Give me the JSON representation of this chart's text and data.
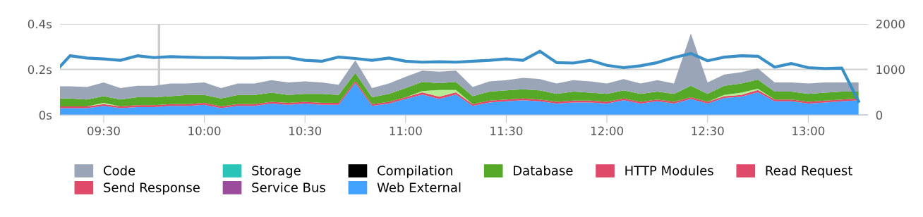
{
  "chart_data": {
    "type": "area",
    "stacked": true,
    "x": [
      9.283,
      9.333,
      9.417,
      9.5,
      9.583,
      9.667,
      9.75,
      9.833,
      9.917,
      10,
      10.083,
      10.167,
      10.25,
      10.333,
      10.417,
      10.5,
      10.583,
      10.667,
      10.75,
      10.833,
      10.917,
      11,
      11.083,
      11.167,
      11.25,
      11.333,
      11.417,
      11.5,
      11.583,
      11.667,
      11.75,
      11.833,
      11.917,
      12,
      12.083,
      12.167,
      12.25,
      12.333,
      12.417,
      12.5,
      12.583,
      12.667,
      12.75,
      12.833,
      12.917,
      13,
      13.083,
      13.167,
      13.25
    ],
    "xlim": [
      9.283,
      13.295
    ],
    "xticks": [
      {
        "value": 9.5,
        "label": "09:30"
      },
      {
        "value": 10,
        "label": "10:00"
      },
      {
        "value": 10.5,
        "label": "10:30"
      },
      {
        "value": 11,
        "label": "11:00"
      },
      {
        "value": 11.5,
        "label": "11:30"
      },
      {
        "value": 12,
        "label": "12:00"
      },
      {
        "value": 12.5,
        "label": "12:30"
      },
      {
        "value": 13,
        "label": "13:00"
      }
    ],
    "ylim": [
      0,
      0.4
    ],
    "yticks": [
      {
        "value": 0,
        "label": "0s"
      },
      {
        "value": 0.2,
        "label": "0.2s"
      },
      {
        "value": 0.4,
        "label": "0.4s"
      }
    ],
    "y2lim": [
      0,
      2000
    ],
    "y2ticks": [
      0,
      1000,
      2000
    ],
    "grid": "y",
    "legend": "bottom",
    "ref_lines": [
      {
        "axis": "x",
        "value": 9.775,
        "color": "#cccccc"
      }
    ],
    "series": [
      {
        "name": "Web External",
        "color": "#43a2ff",
        "values": [
          0.03,
          0.03,
          0.03,
          0.04,
          0.03,
          0.035,
          0.035,
          0.04,
          0.04,
          0.045,
          0.03,
          0.04,
          0.04,
          0.05,
          0.045,
          0.05,
          0.045,
          0.045,
          0.14,
          0.04,
          0.05,
          0.07,
          0.09,
          0.07,
          0.09,
          0.04,
          0.055,
          0.06,
          0.065,
          0.06,
          0.05,
          0.055,
          0.055,
          0.05,
          0.065,
          0.05,
          0.06,
          0.05,
          0.07,
          0.05,
          0.075,
          0.08,
          0.1,
          0.06,
          0.06,
          0.05,
          0.055,
          0.06,
          0.065
        ]
      },
      {
        "name": "Service Bus",
        "color": "#9b4d9b",
        "values": [
          null,
          null,
          null,
          null,
          null,
          null,
          null,
          null,
          null,
          null,
          null,
          null,
          null,
          null,
          null,
          null,
          null,
          null,
          null,
          null,
          null,
          null,
          null,
          null,
          null,
          null,
          null,
          null,
          null,
          null,
          null,
          null,
          null,
          null,
          null,
          null,
          null,
          null,
          null,
          null,
          null,
          null,
          null,
          null,
          null,
          null,
          null,
          null,
          null
        ]
      },
      {
        "name": "Send Response",
        "color": "#e04a6a",
        "values": [
          0.008,
          0.008,
          0.008,
          0.008,
          0.008,
          0.008,
          0.008,
          0.008,
          0.008,
          0.008,
          0.008,
          0.008,
          0.008,
          0.008,
          0.008,
          0.008,
          0.008,
          0.008,
          0.01,
          0.008,
          0.008,
          0.008,
          0.01,
          0.01,
          0.01,
          0.008,
          0.008,
          0.008,
          0.008,
          0.008,
          0.008,
          0.008,
          0.008,
          0.008,
          0.008,
          0.008,
          0.008,
          0.008,
          0.008,
          0.008,
          0.008,
          0.008,
          0.01,
          0.008,
          0.008,
          0.008,
          0.008,
          0.008,
          0.008
        ]
      },
      {
        "name": "Read Request",
        "color": "#e04a6a",
        "values": [
          null,
          null,
          null,
          null,
          null,
          null,
          null,
          null,
          null,
          null,
          null,
          null,
          null,
          null,
          null,
          null,
          null,
          null,
          null,
          null,
          null,
          null,
          null,
          null,
          null,
          null,
          null,
          null,
          null,
          null,
          null,
          null,
          null,
          null,
          null,
          null,
          null,
          null,
          null,
          null,
          null,
          null,
          null,
          null,
          null,
          null,
          null,
          null,
          null
        ]
      },
      {
        "name": "HTTP Modules",
        "color": "#e04a6a",
        "values": [
          null,
          null,
          null,
          null,
          null,
          null,
          null,
          null,
          null,
          null,
          null,
          null,
          null,
          null,
          null,
          null,
          null,
          null,
          null,
          null,
          null,
          null,
          null,
          null,
          null,
          null,
          null,
          null,
          null,
          null,
          null,
          null,
          null,
          null,
          null,
          null,
          null,
          null,
          null,
          null,
          null,
          null,
          null,
          null,
          null,
          null,
          null,
          null,
          null
        ]
      },
      {
        "color": "#b5ec94",
        "values": [
          0,
          0,
          0,
          0.005,
          0,
          0,
          0,
          0,
          0,
          0,
          0,
          0,
          0,
          0,
          0,
          0,
          0,
          0,
          0,
          0,
          0,
          0,
          0.005,
          0.03,
          0.01,
          0,
          0,
          0,
          0,
          0,
          0,
          0,
          0,
          0,
          0,
          0,
          0,
          0,
          0,
          0,
          0.005,
          0.01,
          0.005,
          0,
          0,
          0,
          0,
          0,
          0
        ]
      },
      {
        "name": "Database",
        "color": "#56a927",
        "values": [
          0.035,
          0.035,
          0.03,
          0.03,
          0.03,
          0.035,
          0.035,
          0.035,
          0.04,
          0.035,
          0.035,
          0.04,
          0.04,
          0.04,
          0.035,
          0.035,
          0.04,
          0.035,
          0.035,
          0.03,
          0.035,
          0.04,
          0.04,
          0.03,
          0.035,
          0.035,
          0.04,
          0.04,
          0.04,
          0.04,
          0.035,
          0.04,
          0.035,
          0.035,
          0.035,
          0.035,
          0.035,
          0.035,
          0.05,
          0.035,
          0.04,
          0.04,
          0.04,
          0.035,
          0.035,
          0.035,
          0.035,
          0.035,
          0.03
        ]
      },
      {
        "name": "Compilation",
        "color": "#000000",
        "values": [
          null,
          null,
          null,
          null,
          null,
          null,
          null,
          null,
          null,
          null,
          null,
          null,
          null,
          null,
          null,
          null,
          null,
          null,
          null,
          null,
          null,
          null,
          null,
          null,
          null,
          null,
          null,
          null,
          null,
          null,
          null,
          null,
          null,
          null,
          null,
          null,
          null,
          null,
          null,
          null,
          null,
          null,
          null,
          null,
          null,
          null,
          null,
          null,
          null
        ]
      },
      {
        "name": "Storage",
        "color": "#2ac5b8",
        "values": [
          null,
          null,
          null,
          null,
          null,
          null,
          null,
          null,
          null,
          null,
          null,
          null,
          null,
          null,
          null,
          null,
          null,
          null,
          null,
          null,
          null,
          null,
          null,
          null,
          null,
          null,
          null,
          null,
          null,
          null,
          null,
          null,
          null,
          null,
          null,
          null,
          null,
          null,
          null,
          null,
          null,
          null,
          null,
          null,
          null,
          null,
          null,
          null,
          null
        ]
      },
      {
        "name": "Code",
        "color": "#9aa5b7",
        "values": [
          0.053,
          0.053,
          0.055,
          0.06,
          0.05,
          0.05,
          0.05,
          0.055,
          0.05,
          0.055,
          0.045,
          0.05,
          0.05,
          0.055,
          0.055,
          0.055,
          0.05,
          0.045,
          0.055,
          0.04,
          0.045,
          0.05,
          0.05,
          0.05,
          0.05,
          0.04,
          0.045,
          0.045,
          0.05,
          0.05,
          0.045,
          0.05,
          0.05,
          0.045,
          0.05,
          0.045,
          0.05,
          0.045,
          0.23,
          0.05,
          0.05,
          0.05,
          0.05,
          0.04,
          0.04,
          0.045,
          0.045,
          0.04,
          0.04
        ]
      },
      {
        "type": "line",
        "axis": "y2",
        "color": "#3b8fc7",
        "values": [
          1060,
          1300,
          1250,
          1230,
          1200,
          1300,
          1260,
          1280,
          1270,
          1260,
          1260,
          1250,
          1250,
          1260,
          1260,
          1200,
          1180,
          1270,
          1240,
          1200,
          1250,
          1180,
          1160,
          1170,
          1160,
          1180,
          1200,
          1230,
          1200,
          1400,
          1150,
          1140,
          1200,
          1090,
          1040,
          1080,
          1150,
          1260,
          1350,
          1190,
          1270,
          1300,
          1290,
          1050,
          1130,
          1040,
          1020,
          1030,
          300
        ]
      }
    ]
  }
}
